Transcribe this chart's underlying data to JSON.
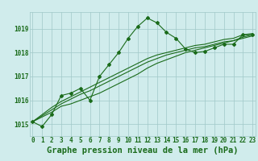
{
  "title": "Graphe pression niveau de la mer (hPa)",
  "background_color": "#d0ecec",
  "grid_color": "#a0c8c8",
  "line_color": "#1a6b1a",
  "x_ticks": [
    0,
    1,
    2,
    3,
    4,
    5,
    6,
    7,
    8,
    9,
    10,
    11,
    12,
    13,
    14,
    15,
    16,
    17,
    18,
    19,
    20,
    21,
    22,
    23
  ],
  "y_ticks": [
    1015,
    1016,
    1017,
    1018,
    1019
  ],
  "ylim": [
    1014.5,
    1019.7
  ],
  "xlim": [
    -0.3,
    23.3
  ],
  "series": [
    [
      1015.1,
      1014.9,
      1015.4,
      1016.2,
      1016.3,
      1016.5,
      1016.0,
      1017.0,
      1017.5,
      1018.0,
      1018.6,
      1019.1,
      1019.45,
      1019.25,
      1018.85,
      1018.6,
      1018.15,
      1018.0,
      1018.05,
      1018.2,
      1018.35,
      1018.35,
      1018.75,
      1018.75
    ],
    [
      1015.1,
      1015.3,
      1015.5,
      1015.75,
      1015.85,
      1016.0,
      1016.15,
      1016.3,
      1016.5,
      1016.7,
      1016.9,
      1017.1,
      1017.35,
      1017.55,
      1017.7,
      1017.85,
      1018.0,
      1018.1,
      1018.2,
      1018.3,
      1018.4,
      1018.5,
      1018.6,
      1018.7
    ],
    [
      1015.1,
      1015.35,
      1015.6,
      1015.85,
      1016.05,
      1016.25,
      1016.4,
      1016.6,
      1016.8,
      1017.0,
      1017.2,
      1017.4,
      1017.6,
      1017.75,
      1017.9,
      1018.0,
      1018.1,
      1018.2,
      1018.25,
      1018.35,
      1018.45,
      1018.5,
      1018.65,
      1018.75
    ],
    [
      1015.1,
      1015.4,
      1015.7,
      1015.95,
      1016.15,
      1016.35,
      1016.55,
      1016.75,
      1016.95,
      1017.15,
      1017.35,
      1017.55,
      1017.75,
      1017.9,
      1018.0,
      1018.1,
      1018.2,
      1018.3,
      1018.35,
      1018.45,
      1018.55,
      1018.6,
      1018.75,
      1018.8
    ]
  ],
  "marker_series": 0,
  "marker": "D",
  "marker_size": 2.0,
  "linewidth": 0.8,
  "title_fontsize": 7.5,
  "tick_fontsize": 5.5
}
